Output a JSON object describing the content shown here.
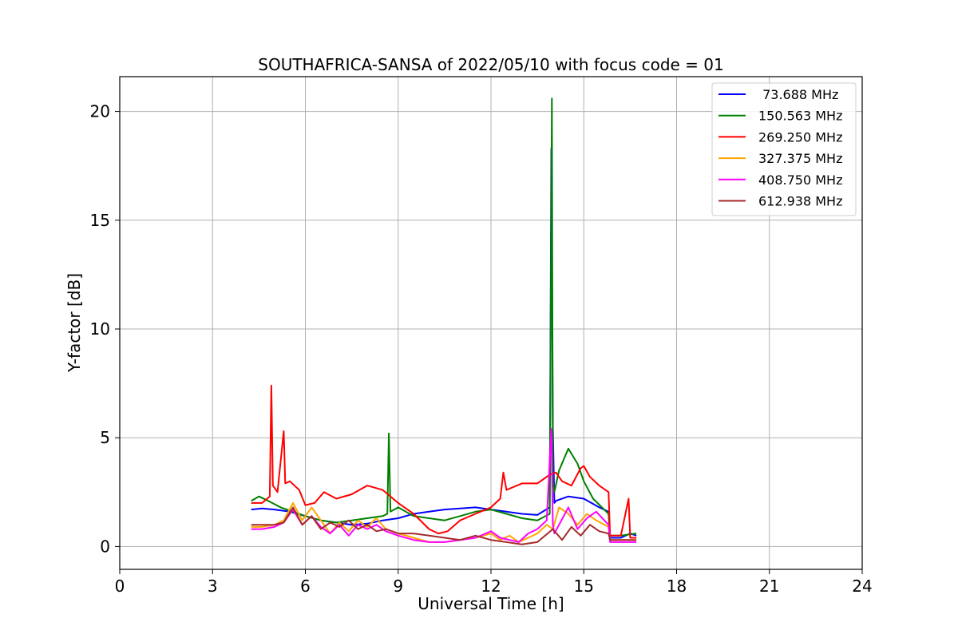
{
  "chart_data": {
    "type": "line",
    "title": "SOUTHAFRICA-SANSA of 2022/05/10 with focus code = 01",
    "xlabel": "Universal Time [h]",
    "ylabel": "Y-factor [dB]",
    "xlim": [
      0,
      24
    ],
    "ylim": [
      -1.05,
      21.6
    ],
    "xticks": [
      0,
      3,
      6,
      9,
      12,
      15,
      18,
      21,
      24
    ],
    "yticks": [
      0,
      5,
      10,
      15,
      20
    ],
    "xtick_labels": [
      "0",
      "3",
      "6",
      "9",
      "12",
      "15",
      "18",
      "21",
      "24"
    ],
    "ytick_labels": [
      "0",
      "5",
      "10",
      "15",
      "20"
    ],
    "grid": true,
    "legend_position": "top-right",
    "series": [
      {
        "name": " 73.688 MHz",
        "color": "#0000ff",
        "x": [
          4.25,
          4.6,
          5.0,
          5.5,
          6.0,
          6.5,
          7.0,
          7.5,
          8.0,
          8.5,
          9.0,
          9.5,
          10.0,
          10.5,
          11.0,
          11.5,
          12.0,
          12.5,
          13.0,
          13.5,
          13.9,
          13.95,
          14.0,
          14.05,
          14.1,
          14.5,
          15.0,
          15.5,
          15.8,
          15.85,
          16.2,
          16.5,
          16.7
        ],
        "y": [
          1.7,
          1.75,
          1.7,
          1.6,
          1.4,
          1.2,
          1.1,
          1.0,
          1.05,
          1.2,
          1.3,
          1.5,
          1.6,
          1.7,
          1.75,
          1.8,
          1.7,
          1.6,
          1.5,
          1.45,
          1.8,
          18.3,
          5.5,
          2.0,
          2.1,
          2.3,
          2.2,
          1.8,
          1.6,
          0.4,
          0.4,
          0.6,
          0.5
        ]
      },
      {
        "name": "150.563 MHz",
        "color": "#008000",
        "x": [
          4.25,
          4.5,
          4.8,
          5.2,
          5.6,
          6.0,
          6.5,
          7.0,
          7.5,
          8.0,
          8.5,
          8.65,
          8.7,
          8.75,
          9.0,
          9.5,
          10.0,
          10.5,
          11.0,
          11.5,
          12.0,
          12.5,
          13.0,
          13.5,
          13.9,
          13.97,
          14.0,
          14.05,
          14.2,
          14.5,
          14.8,
          15.0,
          15.3,
          15.8,
          15.85,
          16.2,
          16.7
        ],
        "y": [
          2.1,
          2.3,
          2.1,
          1.8,
          1.6,
          1.4,
          1.2,
          1.1,
          1.2,
          1.3,
          1.4,
          1.5,
          5.2,
          1.6,
          1.8,
          1.4,
          1.3,
          1.2,
          1.4,
          1.6,
          1.7,
          1.5,
          1.3,
          1.2,
          1.5,
          20.6,
          3.0,
          2.5,
          3.5,
          4.5,
          3.8,
          3.0,
          2.2,
          1.5,
          0.5,
          0.5,
          0.6
        ]
      },
      {
        "name": "269.250 MHz",
        "color": "#ff0000",
        "x": [
          4.25,
          4.6,
          4.85,
          4.9,
          4.95,
          5.1,
          5.3,
          5.35,
          5.5,
          5.8,
          6.0,
          6.3,
          6.6,
          7.0,
          7.5,
          8.0,
          8.5,
          9.0,
          9.5,
          10.0,
          10.3,
          10.6,
          11.0,
          11.5,
          12.0,
          12.3,
          12.4,
          12.5,
          13.0,
          13.5,
          13.9,
          14.1,
          14.3,
          14.6,
          14.9,
          15.0,
          15.2,
          15.5,
          15.8,
          15.85,
          16.2,
          16.45,
          16.5,
          16.7
        ],
        "y": [
          2.0,
          2.0,
          2.3,
          7.4,
          2.8,
          2.5,
          5.3,
          2.9,
          3.0,
          2.6,
          1.9,
          2.0,
          2.5,
          2.2,
          2.4,
          2.8,
          2.6,
          2.0,
          1.5,
          0.8,
          0.6,
          0.7,
          1.2,
          1.5,
          1.8,
          2.2,
          3.4,
          2.6,
          2.9,
          2.9,
          3.3,
          3.4,
          3.0,
          2.8,
          3.6,
          3.7,
          3.2,
          2.8,
          2.5,
          0.5,
          0.5,
          2.2,
          0.4,
          0.4
        ]
      },
      {
        "name": "327.375 MHz",
        "color": "#ffa500",
        "x": [
          4.25,
          4.6,
          5.0,
          5.3,
          5.6,
          5.9,
          6.2,
          6.5,
          6.8,
          7.1,
          7.4,
          7.7,
          8.0,
          8.3,
          8.6,
          9.0,
          9.5,
          10.0,
          10.5,
          11.0,
          11.5,
          12.0,
          12.3,
          12.6,
          12.9,
          13.2,
          13.5,
          13.8,
          14.0,
          14.2,
          14.5,
          14.8,
          15.1,
          15.4,
          15.8,
          15.85,
          16.7
        ],
        "y": [
          0.9,
          0.9,
          1.0,
          1.2,
          2.0,
          1.2,
          1.8,
          1.2,
          0.6,
          1.1,
          0.7,
          1.2,
          0.9,
          1.3,
          0.8,
          0.6,
          0.4,
          0.2,
          0.2,
          0.3,
          0.4,
          0.6,
          0.3,
          0.5,
          0.2,
          0.4,
          0.6,
          1.0,
          0.8,
          1.8,
          1.5,
          1.0,
          1.5,
          1.2,
          0.9,
          0.3,
          0.3
        ]
      },
      {
        "name": "408.750 MHz",
        "color": "#ff00ff",
        "x": [
          4.25,
          4.6,
          5.0,
          5.3,
          5.6,
          5.9,
          6.2,
          6.5,
          6.8,
          7.1,
          7.4,
          7.7,
          8.0,
          8.3,
          8.6,
          9.0,
          9.5,
          10.0,
          10.5,
          11.0,
          11.5,
          12.0,
          12.3,
          12.6,
          12.9,
          13.2,
          13.5,
          13.8,
          13.95,
          14.0,
          14.05,
          14.2,
          14.5,
          14.8,
          15.1,
          15.4,
          15.8,
          15.85,
          16.7
        ],
        "y": [
          0.8,
          0.8,
          0.9,
          1.1,
          1.7,
          1.0,
          1.4,
          0.9,
          0.6,
          1.0,
          0.5,
          1.0,
          0.8,
          1.0,
          0.7,
          0.5,
          0.3,
          0.2,
          0.2,
          0.3,
          0.4,
          0.7,
          0.4,
          0.3,
          0.2,
          0.6,
          0.8,
          1.2,
          5.4,
          1.0,
          0.6,
          1.0,
          1.8,
          0.8,
          1.3,
          1.6,
          1.0,
          0.2,
          0.2
        ]
      },
      {
        "name": "612.938 MHz",
        "color": "#a52a2a",
        "x": [
          4.25,
          4.6,
          5.0,
          5.3,
          5.6,
          5.9,
          6.2,
          6.5,
          6.8,
          7.1,
          7.4,
          7.7,
          8.0,
          8.3,
          8.6,
          9.0,
          9.5,
          10.0,
          10.5,
          11.0,
          11.5,
          12.0,
          12.5,
          13.0,
          13.5,
          14.0,
          14.3,
          14.6,
          14.9,
          15.2,
          15.5,
          15.8,
          15.85,
          16.7
        ],
        "y": [
          1.0,
          1.0,
          1.0,
          1.1,
          1.8,
          1.0,
          1.4,
          0.8,
          1.1,
          0.9,
          1.2,
          0.8,
          1.0,
          0.7,
          0.8,
          0.6,
          0.6,
          0.5,
          0.4,
          0.3,
          0.5,
          0.3,
          0.2,
          0.1,
          0.2,
          0.8,
          0.3,
          0.9,
          0.5,
          1.0,
          0.7,
          0.6,
          0.3,
          0.3
        ]
      }
    ]
  }
}
